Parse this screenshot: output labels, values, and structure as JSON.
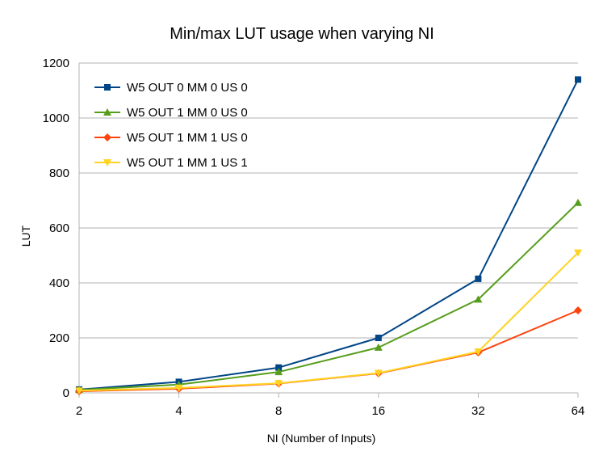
{
  "chart_data": {
    "type": "line",
    "title": "Min/max LUT usage when varying NI",
    "xlabel": "NI (Number of Inputs)",
    "ylabel": "LUT",
    "categories": [
      "2",
      "4",
      "8",
      "16",
      "32",
      "64"
    ],
    "ylim": [
      0,
      1200
    ],
    "yticks": [
      0,
      200,
      400,
      600,
      800,
      1000,
      1200
    ],
    "grid": true,
    "legend_position": "top-left",
    "series": [
      {
        "name": "W5 OUT 0 MM 0 US 0",
        "color": "#004586",
        "marker": "square",
        "values": [
          12,
          40,
          92,
          200,
          415,
          1140
        ]
      },
      {
        "name": "W5 OUT 1 MM 0 US 0",
        "color": "#579d1c",
        "marker": "triangle-up",
        "values": [
          11,
          30,
          76,
          165,
          340,
          692
        ]
      },
      {
        "name": "W5 OUT 1 MM 1 US 0",
        "color": "#ff420e",
        "marker": "diamond",
        "values": [
          6,
          15,
          34,
          71,
          147,
          300
        ]
      },
      {
        "name": "W5 OUT 1 MM 1 US 1",
        "color": "#ffd320",
        "marker": "triangle-down",
        "values": [
          8,
          18,
          35,
          72,
          150,
          510
        ]
      }
    ]
  }
}
